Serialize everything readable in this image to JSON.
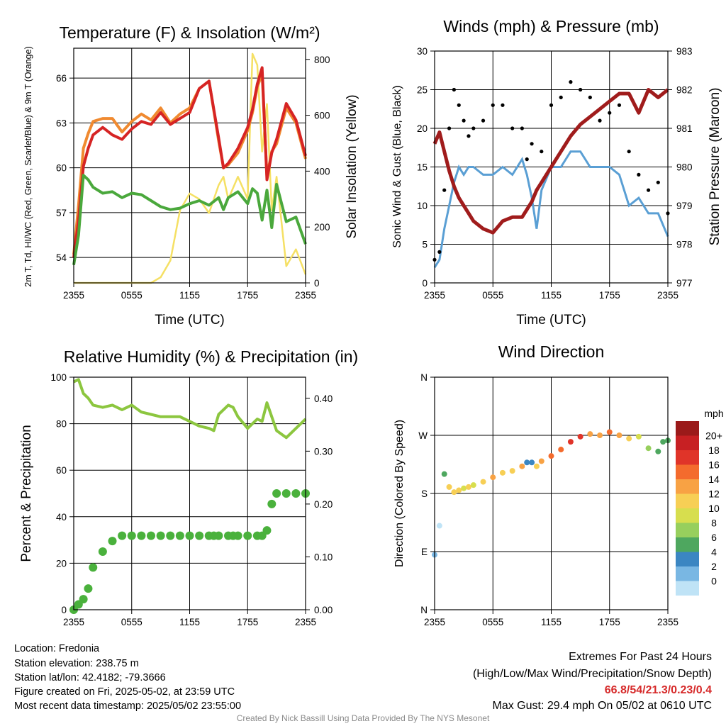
{
  "chart_data": [
    {
      "type": "line",
      "title": "Temperature (F) & Insolation (W/m²)",
      "xlabel": "Time (UTC)",
      "ylabel": "2m T, Td, HI/WC (Red, Green, Scarlet/Blue) & 9m T (Orange)",
      "y2label": "Solar Insolation (Yellow)",
      "x_ticks": [
        "2355",
        "0555",
        "1155",
        "1755",
        "2355"
      ],
      "y_ticks": [
        54,
        57,
        60,
        63,
        66
      ],
      "y2_ticks": [
        0,
        200,
        400,
        600,
        800
      ],
      "ylim": [
        52.3,
        68.0
      ],
      "y2lim": [
        0,
        840
      ],
      "grid": true,
      "x_hours": [
        0,
        0.5,
        1,
        1.5,
        2,
        3,
        4,
        5,
        6,
        7,
        8,
        9,
        10,
        11,
        12,
        13,
        14,
        15,
        15.5,
        16,
        17,
        18,
        18.5,
        19,
        19.5,
        20,
        20.5,
        21,
        22,
        23,
        24
      ],
      "series": [
        {
          "name": "Red",
          "color": "#d62424",
          "values": [
            54.0,
            56.5,
            60.1,
            61.3,
            62.2,
            62.7,
            62.2,
            61.9,
            62.6,
            63.1,
            62.9,
            63.7,
            62.9,
            63.3,
            63.7,
            65.3,
            65.8,
            62.0,
            60.0,
            60.3,
            61.3,
            62.7,
            63.9,
            65.6,
            66.7,
            59.2,
            61.0,
            61.9,
            64.3,
            63.2,
            60.8
          ]
        },
        {
          "name": "Orange",
          "color": "#f08a30",
          "values": [
            54.2,
            57.5,
            61.3,
            62.3,
            63.1,
            63.3,
            63.3,
            62.4,
            63.1,
            63.6,
            63.2,
            64.0,
            63.0,
            63.6,
            64.0,
            65.3,
            65.8,
            61.8,
            60.0,
            60.2,
            61.0,
            62.5,
            63.7,
            65.4,
            66.3,
            59.4,
            61.1,
            61.6,
            64.0,
            63.0,
            60.6
          ]
        },
        {
          "name": "Green",
          "color": "#4aa83c",
          "values": [
            53.5,
            55.5,
            59.5,
            59.2,
            58.7,
            58.3,
            58.4,
            58.0,
            58.3,
            58.2,
            57.8,
            57.4,
            57.2,
            57.3,
            57.6,
            57.8,
            57.5,
            58.0,
            57.2,
            58.0,
            58.4,
            57.6,
            58.6,
            58.3,
            56.5,
            58.5,
            56.0,
            58.9,
            56.4,
            56.7,
            54.9
          ]
        },
        {
          "name": "Blue",
          "color": "#3d87c8",
          "values": []
        },
        {
          "name": "Yellow",
          "color": "#f5e064",
          "axis": "y2",
          "values": [
            0,
            0,
            0,
            0,
            0,
            0,
            0,
            0,
            0,
            0,
            0,
            20,
            80,
            260,
            320,
            300,
            250,
            350,
            380,
            300,
            380,
            300,
            820,
            780,
            470,
            640,
            260,
            380,
            60,
            120,
            30
          ]
        }
      ]
    },
    {
      "type": "line",
      "title": "Winds (mph) & Pressure (mb)",
      "xlabel": "Time (UTC)",
      "ylabel": "Sonic Wind & Gust (Blue, Black)",
      "y2label": "Station Pressure (Maroon)",
      "x_ticks": [
        "2355",
        "0555",
        "1155",
        "1755",
        "2355"
      ],
      "y_ticks": [
        0,
        5,
        10,
        15,
        20,
        25,
        30
      ],
      "y2_ticks": [
        977,
        978,
        979,
        980,
        981,
        982,
        983
      ],
      "ylim": [
        0,
        30
      ],
      "y2lim": [
        977,
        983
      ],
      "grid": true,
      "x_hours": [
        0,
        0.5,
        1,
        1.5,
        2,
        2.5,
        3,
        3.5,
        4,
        5,
        6,
        7,
        8,
        9,
        9.5,
        10,
        10.5,
        11,
        12,
        13,
        14,
        15,
        16,
        17,
        18,
        19,
        20,
        21,
        22,
        23,
        24
      ],
      "series": [
        {
          "name": "Blue",
          "color": "#5a9fd4",
          "values": [
            2,
            3,
            7,
            10,
            13,
            15,
            14,
            15,
            15,
            14,
            14,
            15,
            14,
            16,
            14,
            11,
            7,
            12,
            15,
            15,
            17,
            17,
            15,
            15,
            15,
            14,
            10,
            11,
            9,
            9,
            6
          ]
        },
        {
          "name": "Black",
          "color": "#000000",
          "style": "points",
          "values": [
            3,
            4,
            12,
            20,
            25,
            23,
            21,
            19,
            20,
            21,
            23,
            23,
            20,
            20,
            16,
            18,
            12,
            17,
            23,
            24,
            26,
            25,
            24,
            21,
            22,
            23,
            17,
            14,
            12,
            13,
            9
          ]
        },
        {
          "name": "Maroon",
          "color": "#a01c1c",
          "axis": "y2",
          "values": [
            980.6,
            980.9,
            980.4,
            979.9,
            979.5,
            979.2,
            979.0,
            978.8,
            978.6,
            978.4,
            978.3,
            978.6,
            978.7,
            978.7,
            978.9,
            979.1,
            979.4,
            979.6,
            980.0,
            980.4,
            980.8,
            981.1,
            981.3,
            981.5,
            981.7,
            981.9,
            981.9,
            981.4,
            982.0,
            981.8,
            982.0
          ]
        }
      ]
    },
    {
      "type": "line",
      "title": "Relative Humidity (%) & Precipitation (in)",
      "ylabel": "Percent & Precipitation",
      "x_ticks": [
        "2355",
        "0555",
        "1155",
        "1755",
        "2355"
      ],
      "y_ticks": [
        0,
        20,
        40,
        60,
        80,
        100
      ],
      "y2_ticks": [
        "0.00",
        "0.10",
        "0.20",
        "0.30",
        "0.40"
      ],
      "ylim": [
        0,
        100
      ],
      "y2lim": [
        0,
        0.44
      ],
      "grid": true,
      "x_hours": [
        0,
        0.5,
        1,
        1.5,
        2,
        3,
        4,
        5,
        6,
        7,
        8,
        9,
        10,
        11,
        12,
        13,
        14,
        14.5,
        15,
        16,
        16.5,
        17,
        18,
        19,
        19.5,
        20,
        20.5,
        21,
        22,
        23,
        24
      ],
      "series": [
        {
          "name": "Relative Humidity",
          "color": "#8cc63f",
          "values": [
            98,
            99,
            93,
            91,
            88,
            87,
            88,
            86,
            88,
            85,
            84,
            83,
            83,
            83,
            81,
            79,
            78,
            77,
            84,
            88,
            87,
            83,
            78,
            82,
            81,
            89,
            83,
            77,
            74,
            78,
            82
          ]
        },
        {
          "name": "Precipitation",
          "color": "#4ab13c",
          "axis": "y2",
          "style": "points",
          "values": [
            0,
            0.01,
            0.02,
            0.04,
            0.08,
            0.11,
            0.13,
            0.14,
            0.14,
            0.14,
            0.14,
            0.14,
            0.14,
            0.14,
            0.14,
            0.14,
            0.14,
            0.14,
            0.14,
            0.14,
            0.14,
            0.14,
            0.14,
            0.14,
            0.14,
            0.15,
            0.2,
            0.22,
            0.22,
            0.22,
            0.22
          ]
        }
      ]
    },
    {
      "type": "scatter",
      "title": "Wind Direction",
      "ylabel": "Direction (Colored By Speed)",
      "x_ticks": [
        "2355",
        "0555",
        "1155",
        "1755",
        "2355"
      ],
      "y_ticks": [
        "N",
        "E",
        "S",
        "W",
        "N"
      ],
      "y_tick_degrees": [
        0,
        90,
        180,
        270,
        360
      ],
      "ylim": [
        0,
        360
      ],
      "grid": true,
      "colorbar_title": "mph",
      "colorbar_labels": [
        "20+",
        "18",
        "16",
        "14",
        "12",
        "10",
        "8",
        "6",
        "4",
        "2",
        "0"
      ],
      "colorbar_colors": [
        "#9b1a1a",
        "#c72023",
        "#e03429",
        "#f46b2d",
        "#f8a244",
        "#f7cf55",
        "#d7de4e",
        "#97cf5d",
        "#4ea75f",
        "#3b86c2",
        "#79b7e3",
        "#bfe3f6"
      ],
      "x_hours": [
        0,
        0.5,
        1,
        1.5,
        2,
        2.5,
        3,
        3.5,
        4,
        5,
        6,
        7,
        8,
        9,
        9.5,
        10,
        10.5,
        11,
        12,
        13,
        14,
        15,
        16,
        17,
        18,
        19,
        20,
        21,
        22,
        23,
        23.5,
        24
      ],
      "direction_degrees": [
        85,
        130,
        210,
        190,
        182,
        185,
        188,
        190,
        193,
        198,
        205,
        212,
        215,
        222,
        228,
        228,
        222,
        230,
        238,
        248,
        260,
        268,
        272,
        270,
        275,
        270,
        265,
        268,
        250,
        245,
        260,
        262
      ],
      "speed_mph": [
        2,
        1,
        6,
        12,
        13,
        12,
        11,
        13,
        11,
        12,
        14,
        13,
        12,
        14,
        5,
        4,
        12,
        15,
        16,
        16,
        18,
        18,
        15,
        15,
        16,
        15,
        13,
        10,
        8,
        7,
        7,
        6
      ]
    }
  ],
  "info": {
    "location": "Location: Fredonia",
    "elevation": "Station elevation: 238.75 m",
    "latlon": "Station lat/lon: 42.4182; -79.3666",
    "created": "Figure created on Fri, 2025-05-02, at 23:59 UTC",
    "recent": "Most recent data timestamp: 2025/05/02 23:55:00"
  },
  "extremes": {
    "title": "Extremes For Past 24 Hours",
    "subtitle": "(High/Low/Max Wind/Precipitation/Snow Depth)",
    "values": "66.8/54/21.3/0.23/0.4",
    "values_color": "#d62a2a",
    "gust": "Max Gust: 29.4 mph On 05/02 at 0610 UTC"
  },
  "credit": "Created By Nick Bassill Using Data Provided By The NYS Mesonet"
}
